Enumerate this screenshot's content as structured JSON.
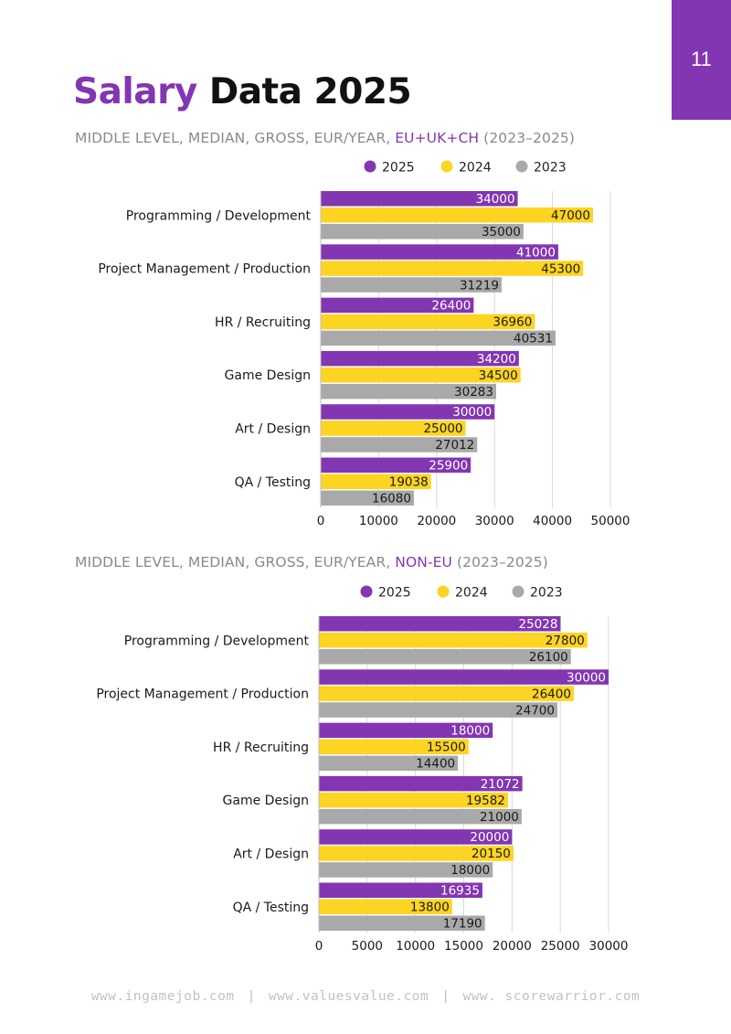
{
  "page": {
    "number": "11",
    "title_accent": "Salary",
    "title_rest": "Data 2025"
  },
  "footer": {
    "links": [
      "www.ingamejob.com",
      "www.valuesvalue.com",
      "www. scorewarrior.com"
    ]
  },
  "colors": {
    "series_2025": "#8336b1",
    "series_2024": "#fdd422",
    "series_2023": "#a9a9a9",
    "grid": "#d9d9d9"
  },
  "chart_data": [
    {
      "type": "bar",
      "orientation": "horizontal",
      "subtitle_prefix": "MIDDLE LEVEL, MEDIAN, GROSS, EUR/YEAR, ",
      "region": "EU+UK+CH",
      "period": " (2023–2025)",
      "legend_position": "top",
      "categories": [
        "Programming / Development",
        "Project Management / Production",
        "HR / Recruiting",
        "Game Design",
        "Art / Design",
        "QA / Testing"
      ],
      "series": [
        {
          "name": "2025",
          "values": [
            34000,
            41000,
            26400,
            34200,
            30000,
            25900
          ]
        },
        {
          "name": "2024",
          "values": [
            47000,
            45300,
            36960,
            34500,
            25000,
            19038
          ]
        },
        {
          "name": "2023",
          "values": [
            35000,
            31219,
            40531,
            30283,
            27012,
            16080
          ]
        }
      ],
      "xlim": [
        0,
        50000
      ],
      "xticks": [
        "0",
        "10000",
        "20000",
        "30000",
        "40000",
        "50000"
      ],
      "grid": true
    },
    {
      "type": "bar",
      "orientation": "horizontal",
      "subtitle_prefix": "MIDDLE LEVEL, MEDIAN, GROSS, EUR/YEAR, ",
      "region": "NON-EU",
      "period": " (2023–2025)",
      "legend_position": "top",
      "categories": [
        "Programming / Development",
        "Project Management / Production",
        "HR / Recruiting",
        "Game Design",
        "Art / Design",
        "QA / Testing"
      ],
      "series": [
        {
          "name": "2025",
          "values": [
            25028,
            30000,
            18000,
            21072,
            20000,
            16935
          ]
        },
        {
          "name": "2024",
          "values": [
            27800,
            26400,
            15500,
            19582,
            20150,
            13800
          ]
        },
        {
          "name": "2023",
          "values": [
            26100,
            24700,
            14400,
            21000,
            18000,
            17190
          ]
        }
      ],
      "xlim": [
        0,
        30000
      ],
      "xticks": [
        "0",
        "5000",
        "10000",
        "15000",
        "20000",
        "25000",
        "30000"
      ],
      "grid": true
    }
  ]
}
